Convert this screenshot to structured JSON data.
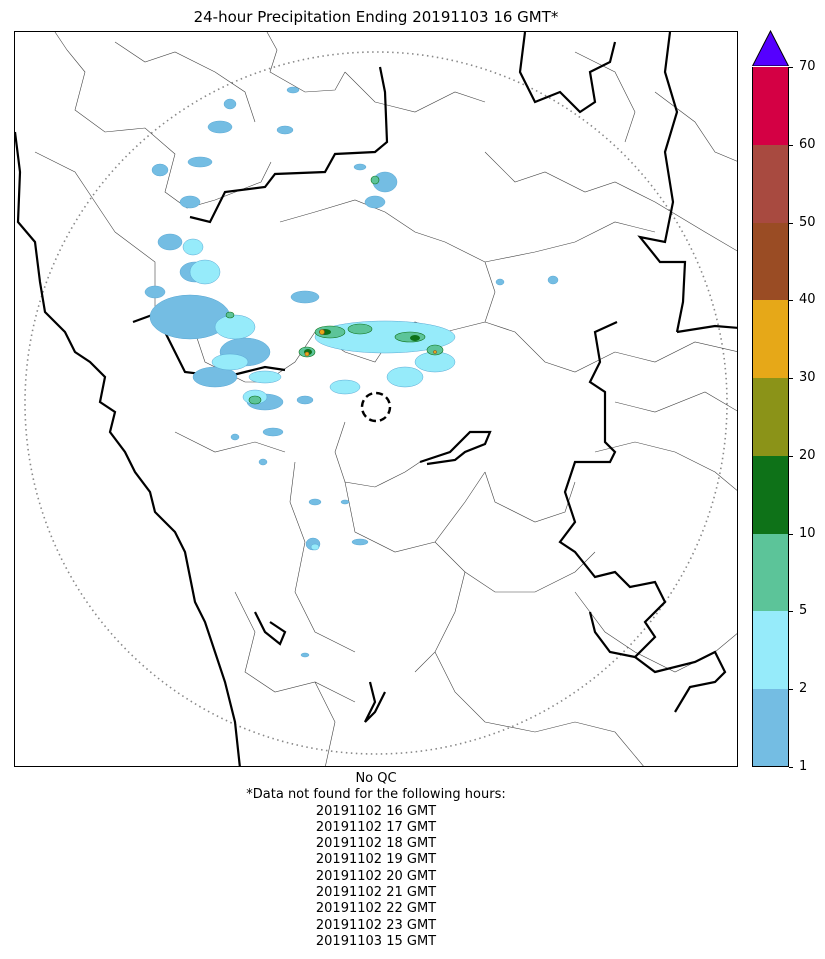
{
  "title": "24-hour Precipitation Ending 20191103 16 GMT*",
  "colorbar": {
    "ticks": [
      "1",
      "2",
      "5",
      "10",
      "20",
      "30",
      "40",
      "50",
      "60",
      "70"
    ],
    "colors": [
      "#74bde3",
      "#96ebfa",
      "#5cc499",
      "#0e7218",
      "#8b9318",
      "#e6a818",
      "#9a4c24",
      "#a84a40",
      "#d40044"
    ],
    "extend_color": "#5500ff"
  },
  "map": {
    "radar_site_marker": "dashed-circle",
    "range_ring": "dotted-circle",
    "boundaries": [
      "coastline",
      "state-borders",
      "district-borders"
    ]
  },
  "footer": {
    "qc": "No QC",
    "note": "*Data not found for the following hours:",
    "missing_hours": [
      "20191102 16 GMT",
      "20191102 17 GMT",
      "20191102 18 GMT",
      "20191102 19 GMT",
      "20191102 20 GMT",
      "20191102 21 GMT",
      "20191102 22 GMT",
      "20191102 23 GMT",
      "20191103 15 GMT"
    ]
  }
}
